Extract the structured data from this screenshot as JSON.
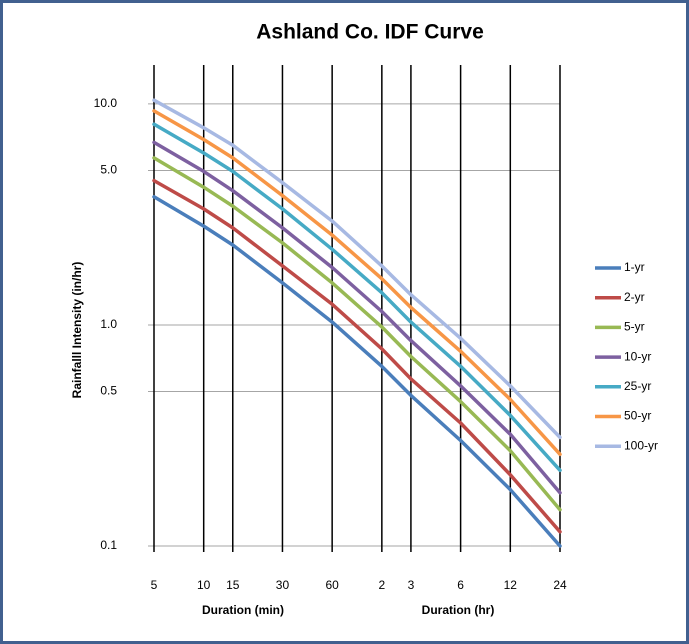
{
  "chart_data": {
    "type": "line",
    "title": "Ashland Co. IDF Curve",
    "ylabel": "Rainfalll Intensity (in/hr)",
    "x_axis_labels": [
      "Duration (min)",
      "Duration (hr)"
    ],
    "x": [
      5,
      10,
      15,
      30,
      60,
      120,
      180,
      360,
      720,
      1440
    ],
    "xlim": [
      5,
      1440
    ],
    "xticks": [
      5,
      10,
      15,
      30,
      60,
      {
        "value": 120,
        "label": "2"
      },
      {
        "value": 180,
        "label": "3"
      },
      {
        "value": 360,
        "label": "6"
      },
      {
        "value": 720,
        "label": "12"
      },
      {
        "value": 1440,
        "label": "24"
      }
    ],
    "xscale": "log",
    "ylim": [
      0.1,
      15
    ],
    "yticks": [
      0.1,
      0.5,
      {
        "value": 1,
        "label": "1.0"
      },
      {
        "value": 5,
        "label": "5.0"
      },
      {
        "value": 10,
        "label": "10.0"
      }
    ],
    "yscale": "log",
    "grid": true,
    "legend": "right",
    "series": [
      {
        "name": "1-yr",
        "color": "#4a7ebb",
        "values": [
          3.8,
          2.8,
          2.3,
          1.55,
          1.03,
          0.65,
          0.48,
          0.3,
          0.18,
          0.1
        ]
      },
      {
        "name": "2-yr",
        "color": "#be4b48",
        "values": [
          4.5,
          3.35,
          2.75,
          1.85,
          1.24,
          0.78,
          0.57,
          0.36,
          0.21,
          0.116
        ]
      },
      {
        "name": "5-yr",
        "color": "#98b954",
        "values": [
          5.7,
          4.2,
          3.45,
          2.35,
          1.55,
          0.98,
          0.72,
          0.45,
          0.27,
          0.146
        ]
      },
      {
        "name": "10-yr",
        "color": "#7d60a0",
        "values": [
          6.7,
          4.95,
          4.05,
          2.75,
          1.82,
          1.15,
          0.85,
          0.53,
          0.32,
          0.174
        ]
      },
      {
        "name": "25-yr",
        "color": "#46aac5",
        "values": [
          8.1,
          6.0,
          4.95,
          3.35,
          2.2,
          1.4,
          1.03,
          0.65,
          0.39,
          0.22
        ]
      },
      {
        "name": "50-yr",
        "color": "#f79646",
        "values": [
          9.3,
          6.9,
          5.7,
          3.85,
          2.55,
          1.62,
          1.2,
          0.76,
          0.46,
          0.26
        ]
      },
      {
        "name": "100-yr",
        "color": "#a7b9e3",
        "values": [
          10.4,
          7.8,
          6.5,
          4.4,
          2.95,
          1.85,
          1.37,
          0.87,
          0.53,
          0.31
        ]
      }
    ]
  }
}
